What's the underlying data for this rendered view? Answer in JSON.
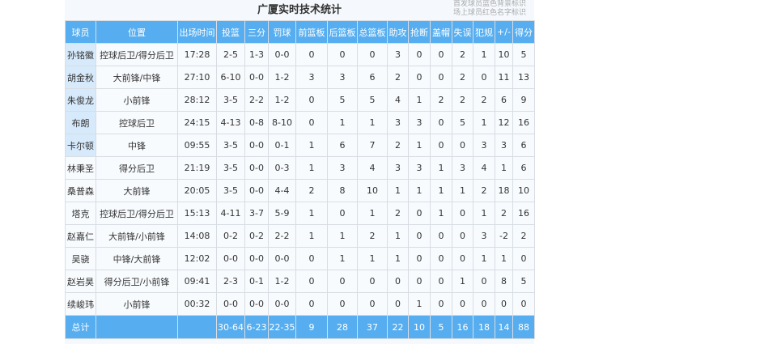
{
  "title": "广厦实时技术统计",
  "legend": [
    "首发球员蓝色背景标识",
    "场上球员红色名字标识"
  ],
  "columns": [
    "球员",
    "位置",
    "出场时间",
    "投篮",
    "三分",
    "罚球",
    "前篮板",
    "后篮板",
    "总篮板",
    "助攻",
    "抢断",
    "盖帽",
    "失误",
    "犯规",
    "+/-",
    "得分"
  ],
  "rows": [
    {
      "starter": true,
      "cells": [
        "孙铭徽",
        "控球后卫/得分后卫",
        "17:28",
        "2-5",
        "1-3",
        "0-0",
        "0",
        "0",
        "0",
        "3",
        "0",
        "0",
        "2",
        "1",
        "10",
        "5"
      ]
    },
    {
      "starter": true,
      "cells": [
        "胡金秋",
        "大前锋/中锋",
        "27:10",
        "6-10",
        "0-0",
        "1-2",
        "3",
        "3",
        "6",
        "2",
        "0",
        "0",
        "2",
        "0",
        "11",
        "13"
      ]
    },
    {
      "starter": true,
      "cells": [
        "朱俊龙",
        "小前锋",
        "28:12",
        "3-5",
        "2-2",
        "1-2",
        "0",
        "5",
        "5",
        "4",
        "1",
        "2",
        "2",
        "2",
        "6",
        "9"
      ]
    },
    {
      "starter": true,
      "cells": [
        "布朗",
        "控球后卫",
        "24:15",
        "4-13",
        "0-8",
        "8-10",
        "0",
        "1",
        "1",
        "3",
        "3",
        "0",
        "5",
        "1",
        "12",
        "16"
      ]
    },
    {
      "starter": true,
      "cells": [
        "卡尔顿",
        "中锋",
        "09:55",
        "3-5",
        "0-0",
        "0-1",
        "1",
        "6",
        "7",
        "2",
        "1",
        "0",
        "0",
        "3",
        "3",
        "6"
      ]
    },
    {
      "starter": false,
      "cells": [
        "林秉圣",
        "得分后卫",
        "21:19",
        "3-5",
        "0-0",
        "0-3",
        "1",
        "3",
        "4",
        "3",
        "3",
        "1",
        "3",
        "4",
        "1",
        "6"
      ]
    },
    {
      "starter": false,
      "cells": [
        "桑普森",
        "大前锋",
        "20:05",
        "3-5",
        "0-0",
        "4-4",
        "2",
        "8",
        "10",
        "1",
        "1",
        "1",
        "1",
        "2",
        "18",
        "10"
      ]
    },
    {
      "starter": false,
      "cells": [
        "塔克",
        "控球后卫/得分后卫",
        "15:13",
        "4-11",
        "3-7",
        "5-9",
        "1",
        "0",
        "1",
        "2",
        "0",
        "1",
        "0",
        "1",
        "2",
        "16"
      ]
    },
    {
      "starter": false,
      "cells": [
        "赵嘉仁",
        "大前锋/小前锋",
        "14:08",
        "0-2",
        "0-2",
        "2-2",
        "1",
        "1",
        "2",
        "1",
        "0",
        "0",
        "0",
        "3",
        "-2",
        "2"
      ]
    },
    {
      "starter": false,
      "cells": [
        "吴骁",
        "中锋/大前锋",
        "12:02",
        "0-0",
        "0-0",
        "0-0",
        "0",
        "1",
        "1",
        "1",
        "0",
        "0",
        "0",
        "1",
        "1",
        "0"
      ]
    },
    {
      "starter": false,
      "cells": [
        "赵岩昊",
        "得分后卫/小前锋",
        "09:41",
        "2-3",
        "0-1",
        "1-2",
        "0",
        "0",
        "0",
        "0",
        "0",
        "0",
        "1",
        "0",
        "8",
        "5"
      ]
    },
    {
      "starter": false,
      "cells": [
        "续峻玮",
        "小前锋",
        "00:32",
        "0-0",
        "0-0",
        "0-0",
        "0",
        "0",
        "0",
        "0",
        "1",
        "0",
        "0",
        "0",
        "0",
        "0"
      ]
    }
  ],
  "total": [
    "总计",
    "",
    "",
    "30-64",
    "6-23",
    "22-35",
    "9",
    "28",
    "37",
    "22",
    "10",
    "5",
    "16",
    "18",
    "14",
    "88"
  ],
  "colors": {
    "header": "#56aef0",
    "starter_bg": "#d6eafb"
  }
}
